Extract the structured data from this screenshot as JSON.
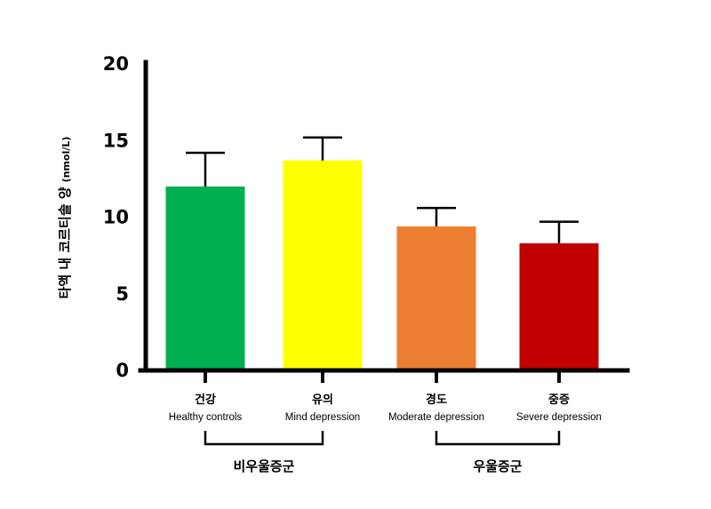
{
  "chart_data": {
    "type": "bar",
    "title": "",
    "ylabel": "타액 내 코르티솔 양",
    "ylabel_unit": "(nmol/L)",
    "ylim": [
      0,
      20
    ],
    "yticks": [
      "0",
      "5",
      "10",
      "15",
      "20"
    ],
    "categories": [
      "건강",
      "유의",
      "경도",
      "중증"
    ],
    "categories_en": [
      "Healthy controls",
      "Mind depression",
      "Moderate depression",
      "Severe depression"
    ],
    "values": [
      12.0,
      13.7,
      9.4,
      8.3
    ],
    "error_upper": [
      2.2,
      1.5,
      1.2,
      1.4
    ],
    "colors": [
      "#00b050",
      "#ffff00",
      "#ed7d31",
      "#c00000"
    ],
    "groups": [
      {
        "label": "비우울증군",
        "categories": [
          0,
          1
        ]
      },
      {
        "label": "우울증군",
        "categories": [
          2,
          3
        ]
      }
    ],
    "grid": false,
    "legend": "none"
  }
}
